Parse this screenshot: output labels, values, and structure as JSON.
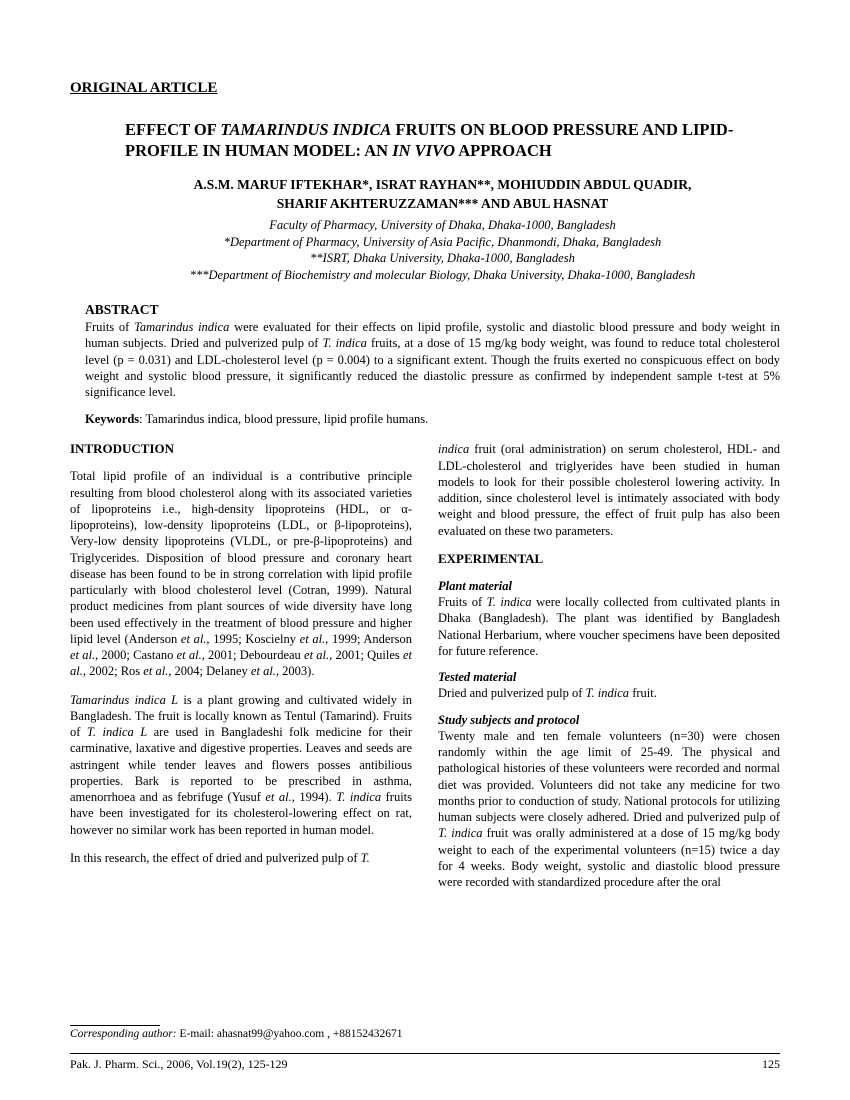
{
  "articleType": "ORIGINAL ARTICLE",
  "title": {
    "pre": "EFFECT OF ",
    "italic1": "TAMARINDUS INDICA",
    "mid": " FRUITS ON BLOOD PRESSURE AND LIPID-PROFILE IN HUMAN MODEL: AN ",
    "italic2": "IN VIVO",
    "post": " APPROACH"
  },
  "authorsLine1": "A.S.M. MARUF IFTEKHAR*, ISRAT RAYHAN**, MOHIUDDIN ABDUL QUADIR,",
  "authorsLine2": "SHARIF AKHTERUZZAMAN*** AND ABUL HASNAT",
  "affil": {
    "a1": "Faculty of Pharmacy, University of Dhaka, Dhaka-1000, Bangladesh",
    "a2": "*Department of Pharmacy, University of Asia Pacific, Dhanmondi, Dhaka, Bangladesh",
    "a3": "**ISRT, Dhaka University, Dhaka-1000, Bangladesh",
    "a4": "***Department of Biochemistry and molecular Biology, Dhaka University, Dhaka-1000, Bangladesh"
  },
  "abstractHeading": "ABSTRACT",
  "abstract": {
    "p1a": "Fruits of ",
    "p1i1": "Tamarindus indica",
    "p1b": " were evaluated for their effects on lipid profile, systolic and diastolic blood pressure and body weight in human subjects. Dried and pulverized pulp of ",
    "p1i2": "T. indica",
    "p1c": " fruits, at a dose of 15 mg/kg body weight, was found to reduce total cholesterol level (p = 0.031) and LDL-cholesterol level (p = 0.004) to a significant extent. Though the fruits exerted no conspicuous effect on body weight and systolic blood pressure, it significantly reduced the diastolic pressure as confirmed by independent sample t-test at 5% significance level."
  },
  "keywordsLabel": "Keywords",
  "keywordsText": ": Tamarindus indica, blood pressure, lipid profile humans.",
  "introHeading": "INTRODUCTION",
  "intro": {
    "p1": "Total lipid profile of an individual is a contributive principle resulting from blood cholesterol along with its associated varieties of lipoproteins i.e., high-density lipoproteins (HDL, or α-lipoproteins), low-density lipoproteins (LDL, or β-lipoproteins), Very-low density lipoproteins (VLDL, or pre-β-lipoproteins) and Triglycerides. Disposition of blood pressure and coronary heart disease has been found to be in strong correlation with lipid profile particularly with blood cholesterol level (Cotran, 1999). Natural product medicines from plant sources of wide diversity have long been used effectively in the treatment of blood pressure and higher lipid level (Anderson ",
    "p1i1": "et al.,",
    "p1b": " 1995; Koscielny ",
    "p1i2": "et al.,",
    "p1c": " 1999; Anderson ",
    "p1i3": "et al.,",
    "p1d": " 2000; Castano ",
    "p1i4": "et al.,",
    "p1e": " 2001; Debourdeau ",
    "p1i5": "et al.,",
    "p1f": " 2001; Quiles ",
    "p1i6": "et al.,",
    "p1g": " 2002; Ros ",
    "p1i7": "et al.,",
    "p1h": " 2004; Delaney ",
    "p1i8": "et al.,",
    "p1j": " 2003).",
    "p2i1": "Tamarindus indica L",
    "p2a": " is a plant growing and cultivated widely in Bangladesh. The fruit is locally known as Tentul (Tamarind). Fruits of ",
    "p2i2": "T. indica L",
    "p2b": " are used in Bangladeshi folk medicine for their carminative, laxative and digestive properties. Leaves and seeds are astringent while tender leaves and flowers posses antibilious properties. Bark is reported to be prescribed in asthma, amenorrhoea and as febrifuge (Yusuf ",
    "p2i3": "et al.,",
    "p2c": " 1994). ",
    "p2i4": "T. indica",
    "p2d": " fruits have been investigated for its cholesterol-lowering effect on rat, however no similar work has been reported in human model.",
    "p3a": "In this research, the effect of dried and pulverized pulp of ",
    "p3i1": "T."
  },
  "col2": {
    "contA": "indica",
    "contB": " fruit (oral administration) on serum cholesterol, HDL- and LDL-cholesterol and triglyerides have been studied in human models to look for their possible cholesterol lowering activity. In addition, since cholesterol level is intimately associated with body weight and blood pressure, the effect of fruit pulp has also been evaluated on these two parameters."
  },
  "expHeading": "EXPERIMENTAL",
  "plantHeading": "Plant material",
  "plant": {
    "a": "Fruits of ",
    "i1": "T. indica",
    "b": " were locally collected from cultivated plants in Dhaka (Bangladesh). The plant was identified by Bangladesh National Herbarium, where voucher specimens have been deposited for future reference."
  },
  "testedHeading": "Tested material",
  "tested": {
    "a": "Dried and pulverized pulp of ",
    "i1": "T. indica",
    "b": " fruit."
  },
  "studyHeading": "Study subjects and protocol",
  "study": {
    "a": "Twenty male and ten female volunteers (n=30) were chosen randomly within the age limit of 25-49. The physical and pathological histories of these volunteers were recorded and normal diet was provided. Volunteers did not take any medicine for two months prior to conduction of study. National protocols for utilizing human subjects were closely adhered. Dried and pulverized pulp of ",
    "i1": "T. indica",
    "b": " fruit was orally administered at a dose of 15 mg/kg body weight to each of the experimental volunteers (n=15) twice a day for 4 weeks. Body weight, systolic and diastolic blood pressure were recorded with standardized procedure after the oral"
  },
  "correspLabel": "Corresponding author:",
  "correspText": " E-mail: ahasnat99@yahoo.com , +88152432671",
  "footerLeft": "Pak. J. Pharm. Sci., 2006, Vol.19(2), 125-129",
  "footerRight": "125"
}
